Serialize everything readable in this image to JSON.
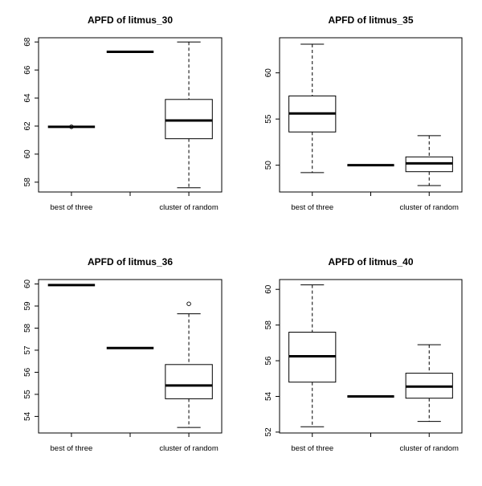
{
  "chart_data": [
    {
      "type": "boxplot",
      "title": "APFD of litmus_30",
      "categories": [
        "best of three",
        "",
        "cluster of random"
      ],
      "tick_labels": [
        "best of three",
        "cluster of random"
      ],
      "ylim": [
        57.3,
        68.3
      ],
      "yticks": [
        58,
        60,
        62,
        64,
        66,
        68
      ],
      "boxes": [
        {
          "min": 61.95,
          "q1": 61.95,
          "median": 61.95,
          "q3": 61.95,
          "max": 61.95,
          "outliers": [
            61.95
          ]
        },
        {
          "min": 67.3,
          "q1": 67.3,
          "median": 67.3,
          "q3": 67.3,
          "max": 67.3,
          "outliers": []
        },
        {
          "min": 57.6,
          "q1": 61.1,
          "median": 62.4,
          "q3": 63.9,
          "max": 68.0,
          "outliers": []
        }
      ]
    },
    {
      "type": "boxplot",
      "title": "APFD of litmus_35",
      "categories": [
        "best of three",
        "",
        "cluster of random"
      ],
      "tick_labels": [
        "best of three",
        "cluster of random"
      ],
      "ylim": [
        47.1,
        63.8
      ],
      "yticks": [
        50,
        55,
        60
      ],
      "boxes": [
        {
          "min": 49.2,
          "q1": 53.6,
          "median": 55.6,
          "q3": 57.5,
          "max": 63.1,
          "outliers": []
        },
        {
          "min": 50.0,
          "q1": 50.0,
          "median": 50.0,
          "q3": 50.0,
          "max": 50.0,
          "outliers": []
        },
        {
          "min": 47.8,
          "q1": 49.3,
          "median": 50.2,
          "q3": 50.9,
          "max": 53.2,
          "outliers": []
        }
      ]
    },
    {
      "type": "boxplot",
      "title": "APFD of litmus_36",
      "categories": [
        "best of three",
        "",
        "cluster of random"
      ],
      "tick_labels": [
        "best of three",
        "cluster of random"
      ],
      "ylim": [
        53.25,
        60.2
      ],
      "yticks": [
        54,
        55,
        56,
        57,
        58,
        59,
        60
      ],
      "boxes": [
        {
          "min": 59.95,
          "q1": 59.95,
          "median": 59.95,
          "q3": 59.95,
          "max": 59.95,
          "outliers": []
        },
        {
          "min": 57.1,
          "q1": 57.1,
          "median": 57.1,
          "q3": 57.1,
          "max": 57.1,
          "outliers": []
        },
        {
          "min": 53.5,
          "q1": 54.8,
          "median": 55.4,
          "q3": 56.35,
          "max": 58.65,
          "outliers": [
            59.1
          ]
        }
      ]
    },
    {
      "type": "boxplot",
      "title": "APFD of litmus_40",
      "categories": [
        "best of three",
        "",
        "cluster of random"
      ],
      "tick_labels": [
        "best of three",
        "cluster of random"
      ],
      "ylim": [
        51.95,
        60.55
      ],
      "yticks": [
        52,
        54,
        56,
        58,
        60
      ],
      "boxes": [
        {
          "min": 52.3,
          "q1": 54.8,
          "median": 56.25,
          "q3": 57.6,
          "max": 60.25,
          "outliers": []
        },
        {
          "min": 54.0,
          "q1": 54.0,
          "median": 54.0,
          "q3": 54.0,
          "max": 54.0,
          "outliers": []
        },
        {
          "min": 52.6,
          "q1": 53.9,
          "median": 54.55,
          "q3": 55.3,
          "max": 56.9,
          "outliers": []
        }
      ]
    }
  ]
}
